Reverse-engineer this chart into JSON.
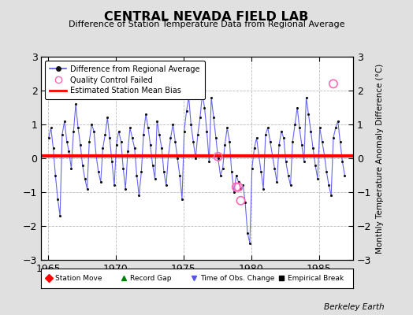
{
  "title": "CENTRAL NEVADA FIELD LAB",
  "subtitle": "Difference of Station Temperature Data from Regional Average",
  "ylabel": "Monthly Temperature Anomaly Difference (°C)",
  "xlabel_note": "Berkeley Earth",
  "x_min": 1964.5,
  "x_max": 1987.5,
  "y_min": -3,
  "y_max": 3,
  "bias_level": 0.07,
  "bias_color": "#ff0000",
  "line_color": "#5555ee",
  "dot_color": "#111111",
  "qc_color": "#ff69b4",
  "background_color": "#e0e0e0",
  "plot_bg_color": "#ffffff",
  "data_x": [
    1965.04,
    1965.21,
    1965.38,
    1965.54,
    1965.71,
    1965.88,
    1966.04,
    1966.21,
    1966.38,
    1966.54,
    1966.71,
    1966.88,
    1967.04,
    1967.21,
    1967.38,
    1967.54,
    1967.71,
    1967.88,
    1968.04,
    1968.21,
    1968.38,
    1968.54,
    1968.71,
    1968.88,
    1969.04,
    1969.21,
    1969.38,
    1969.54,
    1969.71,
    1969.88,
    1970.04,
    1970.21,
    1970.38,
    1970.54,
    1970.71,
    1970.88,
    1971.04,
    1971.21,
    1971.38,
    1971.54,
    1971.71,
    1971.88,
    1972.04,
    1972.21,
    1972.38,
    1972.54,
    1972.71,
    1972.88,
    1973.04,
    1973.21,
    1973.38,
    1973.54,
    1973.71,
    1973.88,
    1974.04,
    1974.21,
    1974.38,
    1974.54,
    1974.71,
    1974.88,
    1975.04,
    1975.21,
    1975.38,
    1975.54,
    1975.71,
    1975.88,
    1976.04,
    1976.21,
    1976.38,
    1976.54,
    1976.71,
    1976.88,
    1977.04,
    1977.21,
    1977.38,
    1977.54,
    1977.71,
    1977.88,
    1978.04,
    1978.21,
    1978.38,
    1978.54,
    1978.71,
    1978.88,
    1979.04,
    1979.21,
    1979.38,
    1979.54,
    1979.71,
    1979.88,
    1980.04,
    1980.21,
    1980.38,
    1980.54,
    1980.71,
    1980.88,
    1981.04,
    1981.21,
    1981.38,
    1981.54,
    1981.71,
    1981.88,
    1982.04,
    1982.21,
    1982.38,
    1982.54,
    1982.71,
    1982.88,
    1983.04,
    1983.21,
    1983.38,
    1983.54,
    1983.71,
    1983.88,
    1984.04,
    1984.21,
    1984.38,
    1984.54,
    1984.71,
    1984.88,
    1985.04,
    1985.21,
    1985.38,
    1985.54,
    1985.71,
    1985.88,
    1986.04,
    1986.21,
    1986.38,
    1986.54,
    1986.71,
    1986.88
  ],
  "data_y": [
    0.6,
    0.9,
    0.3,
    -0.5,
    -1.2,
    -1.7,
    0.7,
    1.1,
    0.5,
    0.2,
    -0.3,
    0.8,
    1.6,
    0.9,
    0.4,
    -0.2,
    -0.6,
    -0.9,
    0.5,
    1.0,
    0.8,
    0.1,
    -0.4,
    -0.7,
    0.3,
    0.7,
    1.2,
    0.6,
    -0.1,
    -0.8,
    0.4,
    0.8,
    0.5,
    -0.3,
    -0.9,
    0.2,
    0.9,
    0.6,
    0.3,
    -0.5,
    -1.1,
    -0.4,
    0.7,
    1.3,
    0.9,
    0.4,
    -0.2,
    -0.6,
    1.1,
    0.7,
    0.3,
    -0.4,
    -0.8,
    0.1,
    0.6,
    1.0,
    0.5,
    0.0,
    -0.5,
    -1.2,
    0.8,
    1.4,
    1.8,
    1.0,
    0.5,
    0.0,
    0.7,
    1.2,
    1.9,
    1.5,
    0.8,
    -0.1,
    1.8,
    1.2,
    0.6,
    0.0,
    -0.5,
    -0.3,
    0.4,
    0.9,
    0.5,
    -0.4,
    -1.0,
    -0.5,
    -0.7,
    -0.9,
    -0.8,
    -1.3,
    -2.2,
    -2.5,
    -0.3,
    0.3,
    0.6,
    0.1,
    -0.4,
    -0.9,
    0.7,
    0.9,
    0.5,
    0.1,
    -0.3,
    -0.7,
    0.4,
    0.8,
    0.6,
    -0.1,
    -0.5,
    -0.8,
    0.5,
    1.0,
    1.5,
    0.9,
    0.4,
    -0.1,
    1.8,
    1.3,
    0.8,
    0.3,
    -0.2,
    -0.6,
    0.9,
    0.5,
    0.1,
    -0.4,
    -0.8,
    -1.1,
    0.6,
    0.9,
    1.1,
    0.5,
    -0.1,
    -0.5
  ],
  "qc_failed_x": [
    1977.54,
    1978.88,
    1979.04,
    1979.21,
    1986.04
  ],
  "qc_failed_y": [
    0.05,
    -0.85,
    -0.85,
    -1.25,
    2.2
  ],
  "grid_color": "#bbbbbb",
  "xticks": [
    1965,
    1970,
    1975,
    1980,
    1985
  ],
  "yticks": [
    -3,
    -2,
    -1,
    0,
    1,
    2,
    3
  ]
}
